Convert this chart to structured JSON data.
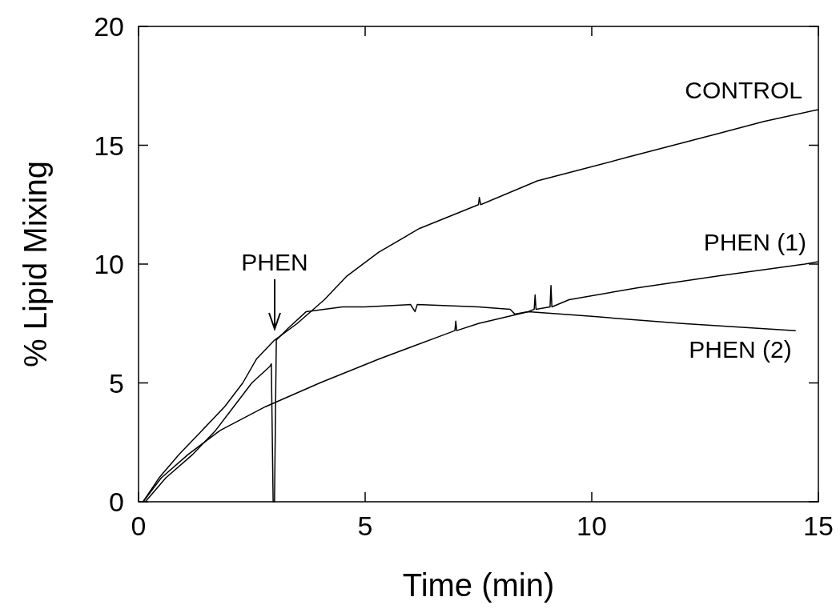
{
  "chart_data": {
    "type": "line",
    "xlabel": "Time (min)",
    "ylabel": "% Lipid Mixing",
    "xlim": [
      0,
      15
    ],
    "ylim": [
      0,
      20
    ],
    "xticks": [
      0,
      5,
      10,
      15
    ],
    "yticks": [
      0,
      5,
      10,
      15,
      20
    ],
    "grid": false,
    "marker": "none",
    "line_style": "solid",
    "annotations": [
      "PHEN"
    ],
    "series": [
      {
        "name": "CONTROL",
        "color": "#000000",
        "x": [
          0.1,
          0.45,
          0.9,
          1.4,
          1.9,
          2.3,
          2.6,
          3.0,
          3.5,
          4.1,
          4.6,
          5.3,
          6.2,
          7.5,
          7.52,
          7.55,
          8.8,
          9.8,
          10.8,
          11.8,
          12.8,
          13.8,
          15
        ],
        "values": [
          0,
          1,
          2,
          3,
          4,
          5,
          6,
          6.8,
          7.5,
          8.5,
          9.5,
          10.5,
          11.5,
          12.5,
          12.8,
          12.5,
          13.5,
          14,
          14.5,
          15,
          15.5,
          16,
          16.5
        ]
      },
      {
        "name": "PHEN (1)",
        "color": "#000000",
        "x": [
          0.1,
          0.5,
          1.1,
          1.8,
          2.8,
          4.0,
          5.3,
          6.7,
          6.98,
          7.0,
          7.02,
          7.5,
          8.6,
          8.73,
          8.75,
          8.77,
          9.08,
          9.1,
          9.12,
          9.5,
          11,
          12.8,
          14.7,
          15
        ],
        "values": [
          0,
          1,
          2,
          3,
          4,
          5,
          6,
          7,
          7.2,
          7.6,
          7.2,
          7.5,
          8,
          8.1,
          8.7,
          8.1,
          8.2,
          9.1,
          8.2,
          8.5,
          9,
          9.5,
          10,
          10.1
        ]
      },
      {
        "name": "PHEN (2)",
        "color": "#000000",
        "x": [
          0.15,
          0.6,
          1.2,
          1.7,
          2.1,
          2.5,
          2.9,
          2.93,
          2.97,
          3.0,
          3.04,
          3.3,
          3.7,
          4.5,
          5,
          6,
          6.1,
          6.15,
          7.5,
          8.2,
          8.3,
          8.6,
          10,
          12,
          14.5
        ],
        "values": [
          0,
          1,
          2,
          3,
          4,
          5,
          5.7,
          5.8,
          0,
          0,
          6.8,
          7.3,
          8,
          8.2,
          8.2,
          8.3,
          8.0,
          8.3,
          8.2,
          8.1,
          7.9,
          8.0,
          7.8,
          7.5,
          7.2
        ]
      }
    ]
  }
}
